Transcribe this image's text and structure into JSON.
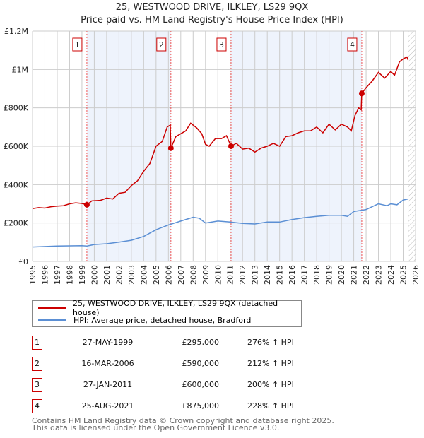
{
  "title": "25, WESTWOOD DRIVE, ILKLEY, LS29 9QX",
  "subtitle": "Price paid vs. HM Land Registry's House Price Index (HPI)",
  "chart_data": {
    "type": "line",
    "xlim": [
      1995,
      2026
    ],
    "ylim": [
      0,
      1200000
    ],
    "yticks": [
      {
        "v": 0,
        "label": "£0"
      },
      {
        "v": 200000,
        "label": "£200K"
      },
      {
        "v": 400000,
        "label": "£400K"
      },
      {
        "v": 600000,
        "label": "£600K"
      },
      {
        "v": 800000,
        "label": "£800K"
      },
      {
        "v": 1000000,
        "label": "£1M"
      },
      {
        "v": 1200000,
        "label": "£1.2M"
      }
    ],
    "xticks": [
      "1995",
      "1996",
      "1997",
      "1998",
      "1999",
      "2000",
      "2001",
      "2002",
      "2003",
      "2004",
      "2005",
      "2006",
      "2007",
      "2008",
      "2009",
      "2010",
      "2011",
      "2012",
      "2013",
      "2014",
      "2015",
      "2016",
      "2017",
      "2018",
      "2019",
      "2020",
      "2021",
      "2022",
      "2023",
      "2024",
      "2025",
      "2026"
    ],
    "shaded_ranges": [
      [
        1999.4,
        2006.2
      ],
      [
        2011.07,
        2021.65
      ]
    ],
    "future_from": 2025.4,
    "colors": {
      "property": "#cc0000",
      "hpi": "#5b8fd4",
      "shade": "#eef3fc",
      "marker_line": "#ee5555"
    },
    "series": [
      {
        "name": "25, WESTWOOD DRIVE, ILKLEY, LS29 9QX (detached house)",
        "key": "property",
        "x": [
          1995,
          1995.5,
          1996,
          1996.5,
          1997,
          1997.5,
          1998,
          1998.5,
          1999,
          1999.4,
          1999.8,
          2000.5,
          2001,
          2001.5,
          2002,
          2002.5,
          2003,
          2003.5,
          2004,
          2004.5,
          2005,
          2005.5,
          2005.9,
          2006.15,
          2006.2,
          2006.6,
          2007,
          2007.4,
          2007.8,
          2008.3,
          2008.7,
          2009.0,
          2009.3,
          2009.8,
          2010.3,
          2010.7,
          2011.07,
          2011.5,
          2012,
          2012.5,
          2013,
          2013.5,
          2014,
          2014.5,
          2015,
          2015.5,
          2016,
          2016.5,
          2017,
          2017.5,
          2018,
          2018.5,
          2019,
          2019.5,
          2020,
          2020.5,
          2020.8,
          2021.1,
          2021.4,
          2021.6,
          2021.65,
          2022,
          2022.5,
          2023,
          2023.5,
          2024,
          2024.3,
          2024.7,
          2025,
          2025.3,
          2025.4
        ],
        "values": [
          275000,
          280000,
          278000,
          285000,
          288000,
          290000,
          300000,
          305000,
          302000,
          295000,
          315000,
          318000,
          330000,
          325000,
          355000,
          360000,
          395000,
          420000,
          470000,
          510000,
          600000,
          625000,
          700000,
          710000,
          590000,
          650000,
          665000,
          680000,
          720000,
          695000,
          665000,
          610000,
          600000,
          640000,
          640000,
          655000,
          600000,
          615000,
          585000,
          590000,
          570000,
          590000,
          600000,
          615000,
          600000,
          650000,
          655000,
          670000,
          680000,
          680000,
          700000,
          670000,
          715000,
          685000,
          715000,
          700000,
          680000,
          760000,
          800000,
          790000,
          875000,
          905000,
          940000,
          985000,
          955000,
          990000,
          970000,
          1040000,
          1055000,
          1065000,
          1050000
        ]
      },
      {
        "name": "HPI: Average price, detached house, Bradford",
        "key": "hpi",
        "x": [
          1995,
          1997,
          1999,
          1999.4,
          2000,
          2001,
          2002,
          2003,
          2004,
          2005,
          2006,
          2007,
          2008,
          2008.5,
          2009.0,
          2010,
          2011,
          2012,
          2013,
          2014,
          2015,
          2016,
          2017,
          2018,
          2019,
          2020,
          2020.5,
          2021,
          2022,
          2023,
          2023.7,
          2024,
          2024.5,
          2025,
          2025.4
        ],
        "values": [
          75000,
          80000,
          82000,
          80000,
          88000,
          92000,
          100000,
          110000,
          130000,
          165000,
          190000,
          210000,
          230000,
          225000,
          200000,
          210000,
          205000,
          198000,
          195000,
          205000,
          205000,
          218000,
          228000,
          235000,
          240000,
          240000,
          235000,
          260000,
          270000,
          300000,
          290000,
          300000,
          295000,
          320000,
          325000
        ]
      }
    ],
    "sales": [
      {
        "num": "1",
        "x": 1999.4,
        "date": "27-MAY-1999",
        "price": "£295,000",
        "value": 295000,
        "hpi": "276% ↑ HPI"
      },
      {
        "num": "2",
        "x": 2006.2,
        "date": "16-MAR-2006",
        "price": "£590,000",
        "value": 590000,
        "hpi": "212% ↑ HPI"
      },
      {
        "num": "3",
        "x": 2011.07,
        "date": "27-JAN-2011",
        "price": "£600,000",
        "value": 600000,
        "hpi": "200% ↑ HPI"
      },
      {
        "num": "4",
        "x": 2021.65,
        "date": "25-AUG-2021",
        "price": "£875,000",
        "value": 875000,
        "hpi": "228% ↑ HPI"
      }
    ]
  },
  "legend": {
    "property": "25, WESTWOOD DRIVE, ILKLEY, LS29 9QX (detached house)",
    "hpi": "HPI: Average price, detached house, Bradford"
  },
  "footer": {
    "line1": "Contains HM Land Registry data © Crown copyright and database right 2025.",
    "line2": "This data is licensed under the Open Government Licence v3.0."
  }
}
